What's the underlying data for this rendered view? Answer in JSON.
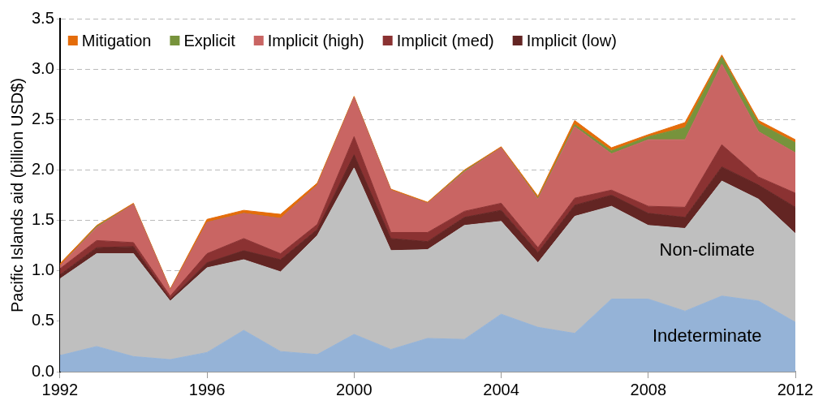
{
  "chart_data": {
    "type": "area",
    "stacked": true,
    "ylabel": "Pacific Islands aid (billion USD$)",
    "x": [
      1992,
      1993,
      1994,
      1995,
      1996,
      1997,
      1998,
      1999,
      2000,
      2001,
      2002,
      2003,
      2004,
      2005,
      2006,
      2007,
      2008,
      2009,
      2010,
      2011,
      2012
    ],
    "xlim": [
      1992,
      2012
    ],
    "xticks": [
      1992,
      1996,
      2000,
      2004,
      2008,
      2012
    ],
    "ylim": [
      0,
      3.5
    ],
    "yticks": [
      {
        "value": 0,
        "label": "0.0"
      },
      {
        "value": 0.5,
        "label": "0.5"
      },
      {
        "value": 1,
        "label": "1.0"
      },
      {
        "value": 1.5,
        "label": "1.5"
      },
      {
        "value": 2,
        "label": "2.0"
      },
      {
        "value": 2.5,
        "label": "2.5"
      },
      {
        "value": 3,
        "label": "3.0"
      },
      {
        "value": 3.5,
        "label": "3.5"
      }
    ],
    "grid": "y",
    "legend": "top left",
    "series": [
      {
        "name": "Indeterminate",
        "color": "#95b3d7",
        "values": [
          0.16,
          0.25,
          0.15,
          0.12,
          0.19,
          0.41,
          0.2,
          0.17,
          0.37,
          0.22,
          0.33,
          0.32,
          0.57,
          0.44,
          0.38,
          0.72,
          0.72,
          0.6,
          0.75,
          0.7,
          0.49
        ]
      },
      {
        "name": "Non-climate",
        "color": "#bfbfbf",
        "values": [
          0.76,
          0.92,
          1.02,
          0.58,
          0.84,
          0.7,
          0.79,
          1.18,
          1.65,
          0.98,
          0.88,
          1.13,
          0.92,
          0.64,
          1.16,
          0.92,
          0.73,
          0.82,
          1.14,
          1.01,
          0.88
        ]
      },
      {
        "name": "Implicit (low)",
        "color": "#632523",
        "values": [
          0.04,
          0.06,
          0.07,
          0.02,
          0.05,
          0.09,
          0.12,
          0.06,
          0.13,
          0.12,
          0.08,
          0.08,
          0.11,
          0.1,
          0.11,
          0.11,
          0.12,
          0.11,
          0.14,
          0.14,
          0.26
        ]
      },
      {
        "name": "Implicit (med)",
        "color": "#8b3232",
        "values": [
          0.06,
          0.07,
          0.04,
          0.03,
          0.09,
          0.12,
          0.06,
          0.05,
          0.18,
          0.06,
          0.09,
          0.06,
          0.07,
          0.05,
          0.07,
          0.05,
          0.07,
          0.1,
          0.22,
          0.08,
          0.14
        ]
      },
      {
        "name": "Implicit (high)",
        "color": "#c96563",
        "values": [
          0.03,
          0.13,
          0.38,
          0.06,
          0.31,
          0.25,
          0.35,
          0.39,
          0.39,
          0.42,
          0.29,
          0.39,
          0.55,
          0.48,
          0.71,
          0.36,
          0.66,
          0.67,
          0.8,
          0.45,
          0.4
        ]
      },
      {
        "name": "Explicit",
        "color": "#77933c",
        "values": [
          0,
          0.01,
          0,
          0,
          0,
          0,
          0,
          0,
          0,
          0,
          0,
          0.01,
          0,
          0.01,
          0.02,
          0.03,
          0.03,
          0.12,
          0.07,
          0.08,
          0.1
        ]
      },
      {
        "name": "Mitigation",
        "color": "#e46c0a",
        "values": [
          0.02,
          0.01,
          0.01,
          0.01,
          0.03,
          0.03,
          0.04,
          0.02,
          0.01,
          0.01,
          0.01,
          0.01,
          0.01,
          0.02,
          0.04,
          0.03,
          0.02,
          0.05,
          0.02,
          0.03,
          0.03
        ]
      }
    ]
  }
}
